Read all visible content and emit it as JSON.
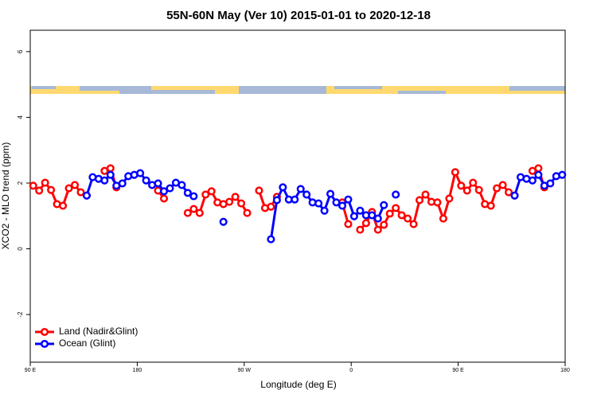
{
  "chart_data": {
    "type": "line",
    "title": "55N-60N May (Ver 10)   2015-01-01 to 2020-12-18",
    "xlabel": "Longitude (deg E)",
    "ylabel": "XCO2 - MLO trend (ppm)",
    "x": [
      92.5,
      97.5,
      102.5,
      107.5,
      112.5,
      117.5,
      122.5,
      127.5,
      132.5,
      137.5,
      142.5,
      147.5,
      152.5,
      157.5,
      162.5,
      167.5,
      172.5,
      177.5,
      182.5,
      187.5,
      192.5,
      197.5,
      202.5,
      207.5,
      212.5,
      217.5,
      222.5,
      227.5,
      232.5,
      237.5,
      242.5,
      247.5,
      252.5,
      257.5,
      262.5,
      267.5,
      272.5,
      277.5,
      282.5,
      287.5,
      292.5,
      297.5,
      302.5,
      307.5,
      312.5,
      317.5,
      322.5,
      327.5,
      332.5,
      337.5,
      342.5,
      347.5,
      352.5,
      357.5,
      362.5,
      367.5,
      372.5,
      377.5,
      382.5,
      387.5,
      392.5,
      397.5,
      402.5,
      407.5,
      412.5,
      417.5,
      422.5,
      427.5,
      432.5,
      437.5,
      442.5,
      447.5,
      452.5,
      457.5,
      462.5,
      467.5,
      472.5,
      477.5,
      482.5,
      487.5,
      492.5,
      497.5,
      502.5,
      507.5,
      512.5,
      517.5,
      522.5,
      527.5,
      532.5,
      537.5
    ],
    "series": [
      {
        "name": "Land (Nadir&Glint)",
        "color": "#ff0000",
        "values": [
          1.92,
          1.77,
          2.01,
          1.79,
          1.36,
          1.31,
          1.84,
          1.94,
          1.72,
          1.62,
          null,
          null,
          2.37,
          2.45,
          1.87,
          null,
          null,
          null,
          null,
          null,
          null,
          1.77,
          1.53,
          null,
          null,
          null,
          1.09,
          1.21,
          1.09,
          1.65,
          1.75,
          1.41,
          1.36,
          1.43,
          1.58,
          1.38,
          1.09,
          null,
          1.77,
          1.24,
          1.28,
          1.58,
          null,
          null,
          null,
          null,
          null,
          null,
          null,
          null,
          null,
          null,
          1.41,
          0.75,
          null,
          0.58,
          0.78,
          1.12,
          0.58,
          0.73,
          1.07,
          1.24,
          1.02,
          0.92,
          0.75,
          1.48,
          1.65,
          1.43,
          1.41,
          0.92,
          1.53,
          2.33,
          1.92,
          1.77,
          2.01,
          1.79,
          1.36,
          1.31,
          1.84,
          1.94,
          1.72,
          1.62,
          null,
          null,
          2.37,
          2.45,
          1.87,
          null,
          null,
          null
        ]
      },
      {
        "name": "Ocean (Glint)",
        "color": "#0000ff",
        "values": [
          null,
          null,
          null,
          null,
          null,
          null,
          null,
          null,
          null,
          1.62,
          2.18,
          2.13,
          2.08,
          2.25,
          1.92,
          1.99,
          2.21,
          2.25,
          2.3,
          2.08,
          1.94,
          1.99,
          1.75,
          1.84,
          2.01,
          1.94,
          1.7,
          1.6,
          null,
          null,
          null,
          null,
          0.82,
          null,
          null,
          null,
          null,
          null,
          null,
          null,
          0.29,
          1.48,
          1.87,
          1.5,
          1.5,
          1.82,
          1.65,
          1.41,
          1.38,
          1.16,
          1.67,
          1.41,
          1.31,
          1.5,
          0.99,
          1.16,
          1.02,
          1.02,
          0.92,
          1.33,
          null,
          1.65,
          null,
          null,
          null,
          null,
          null,
          null,
          null,
          null,
          null,
          null,
          null,
          null,
          null,
          null,
          null,
          null,
          null,
          null,
          null,
          1.62,
          2.18,
          2.13,
          2.08,
          2.25,
          1.92,
          1.99,
          2.21,
          2.25
        ]
      }
    ],
    "xlim": [
      90,
      540
    ],
    "xticks": [
      {
        "value": 90,
        "label": "90 E"
      },
      {
        "value": 180,
        "label": "180"
      },
      {
        "value": 270,
        "label": "90 W"
      },
      {
        "value": 360,
        "label": "0"
      },
      {
        "value": 450,
        "label": "90 E"
      },
      {
        "value": 540,
        "label": "180"
      }
    ],
    "ylim": [
      -3.45,
      6.65
    ],
    "yticks": [
      -2,
      0,
      2,
      4,
      6
    ],
    "grid": false,
    "legend": "bottomleft"
  }
}
